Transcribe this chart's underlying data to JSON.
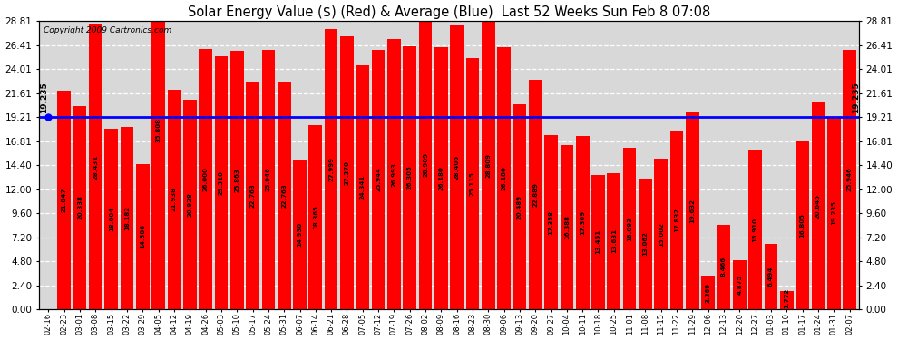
{
  "title": "Solar Energy Value ($) (Red) & Average (Blue)  Last 52 Weeks Sun Feb 8 07:08",
  "copyright": "Copyright 2009 Cartronics.com",
  "average": 19.235,
  "bar_color": "#ff0000",
  "avg_line_color": "#0000ff",
  "background_color": "#ffffff",
  "plot_bg_color": "#d8d8d8",
  "grid_color": "#aaaaaa",
  "yticks": [
    0.0,
    2.4,
    4.8,
    7.2,
    9.6,
    12.0,
    14.4,
    16.81,
    19.21,
    21.61,
    24.01,
    26.41,
    28.81
  ],
  "ylim": [
    0,
    30.0
  ],
  "categories": [
    "02-16",
    "02-23",
    "03-01",
    "03-08",
    "03-15",
    "03-22",
    "03-29",
    "04-05",
    "04-12",
    "04-19",
    "04-26",
    "05-03",
    "05-10",
    "05-17",
    "05-24",
    "05-31",
    "06-07",
    "06-14",
    "06-21",
    "06-28",
    "07-05",
    "07-12",
    "07-19",
    "07-26",
    "08-02",
    "08-09",
    "08-16",
    "08-23",
    "08-30",
    "09-06",
    "09-13",
    "09-20",
    "09-27",
    "10-04",
    "10-11",
    "10-18",
    "10-25",
    "11-01",
    "11-08",
    "11-15",
    "11-22",
    "11-29",
    "12-06",
    "12-13",
    "12-20",
    "12-27",
    "01-03",
    "01-10",
    "01-17",
    "01-24",
    "01-31",
    "02-07"
  ],
  "values": [
    0.0,
    21.847,
    20.338,
    28.431,
    18.004,
    18.182,
    14.506,
    35.808,
    21.938,
    20.928,
    26.0,
    25.31,
    25.863,
    22.763,
    25.946,
    22.763,
    14.93,
    18.365,
    27.999,
    27.27,
    24.341,
    25.944,
    26.993,
    26.305,
    28.909,
    26.18,
    28.406,
    25.115,
    28.809,
    26.18,
    20.489,
    22.889,
    17.358,
    16.388,
    17.309,
    13.451,
    13.631,
    16.093,
    13.062,
    15.002,
    17.832,
    19.632,
    3.369,
    8.466,
    4.875,
    15.91,
    6.494,
    1.772,
    16.805,
    20.645,
    19.235,
    25.946
  ],
  "bar_labels": [
    "0.000",
    "21.847",
    "20.338",
    "28.431",
    "18.004",
    "18.182",
    "14.506",
    "35.808",
    "21.938",
    "20.928",
    "26.000",
    "25.310",
    "25.863",
    "22.763",
    "25.946",
    "22.763",
    "14.930",
    "18.365",
    "27.999",
    "27.270",
    "24.341",
    "25.944",
    "26.993",
    "26.305",
    "28.909",
    "26.180",
    "28.406",
    "25.115",
    "28.809",
    "26.180",
    "20.489",
    "22.889",
    "17.358",
    "16.388",
    "17.309",
    "13.451",
    "13.631",
    "16.093",
    "13.062",
    "15.002",
    "17.832",
    "19.632",
    "3.369",
    "8.466",
    "4.875",
    "15.910",
    "6.494",
    "1.772",
    "16.805",
    "20.645",
    "19.235",
    "25.946"
  ]
}
